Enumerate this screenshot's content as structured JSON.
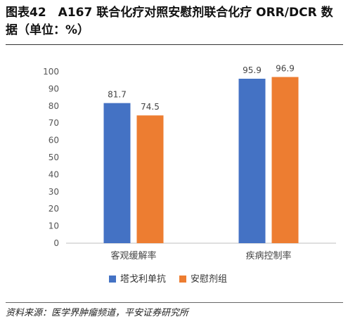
{
  "title": "图表42　A167 联合化疗对照安慰剂联合化疗 ORR/DCR 数据（单位：%）",
  "source": "资料来源：医学界肿瘤频道，平安证券研究所",
  "chart_data": {
    "type": "bar",
    "categories": [
      "客观缓解率",
      "疾病控制率"
    ],
    "series": [
      {
        "name": "塔戈利单抗",
        "values": [
          81.7,
          95.9
        ],
        "color": "#4472C4"
      },
      {
        "name": "安慰剂组",
        "values": [
          74.5,
          96.9
        ],
        "color": "#ED7D31"
      }
    ],
    "ylim": [
      0,
      100
    ],
    "yticks": [
      0,
      10,
      20,
      30,
      40,
      50,
      60,
      70,
      80,
      90,
      100
    ],
    "grid": false,
    "legend": "bottom"
  }
}
